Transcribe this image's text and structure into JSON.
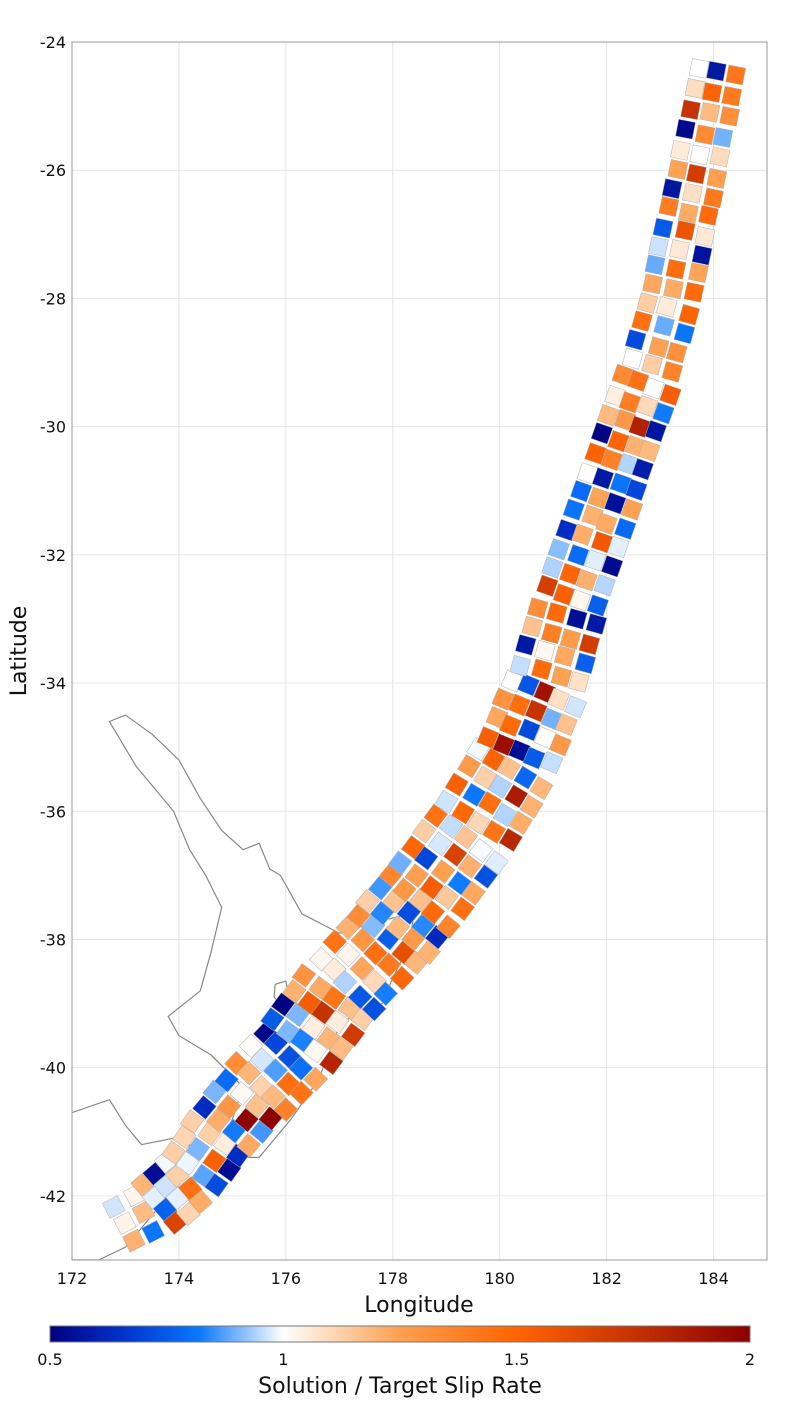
{
  "chart_data": {
    "type": "heatmap",
    "title": "",
    "xlabel": "Longitude",
    "ylabel": "Latitude",
    "xlim": [
      172,
      185
    ],
    "ylim": [
      -43,
      -24
    ],
    "x_ticks": [
      "172",
      "174",
      "176",
      "178",
      "180",
      "182",
      "184"
    ],
    "y_ticks": [
      "-24",
      "-26",
      "-28",
      "-30",
      "-32",
      "-34",
      "-36",
      "-38",
      "-40",
      "-42"
    ],
    "grid": true,
    "colorbar": {
      "label": "Solution / Target Slip Rate",
      "range": [
        0.5,
        2
      ],
      "ticks": [
        "0.5",
        "1",
        "1.5",
        "2"
      ],
      "tick_values": [
        0.5,
        1,
        1.5,
        2
      ],
      "stops": [
        {
          "value": 0.5,
          "color": "#000080"
        },
        {
          "value": 0.65,
          "color": "#0030c8"
        },
        {
          "value": 0.82,
          "color": "#0a78ff"
        },
        {
          "value": 1.0,
          "color": "#ffffff"
        },
        {
          "value": 1.25,
          "color": "#ffa050"
        },
        {
          "value": 1.5,
          "color": "#ff6400"
        },
        {
          "value": 2.0,
          "color": "#8c0000"
        }
      ]
    },
    "fault_trace": [
      [
        172.8,
        -42.5
      ],
      [
        173.5,
        -42.2
      ],
      [
        174.2,
        -41.7
      ],
      [
        174.8,
        -41.0
      ],
      [
        175.4,
        -40.4
      ],
      [
        176.2,
        -39.7
      ],
      [
        177.0,
        -38.8
      ],
      [
        177.8,
        -38.1
      ],
      [
        178.6,
        -37.3
      ],
      [
        179.5,
        -36.3
      ],
      [
        180.3,
        -35.2
      ],
      [
        180.9,
        -34.0
      ],
      [
        181.3,
        -32.8
      ],
      [
        181.8,
        -31.6
      ],
      [
        182.3,
        -30.4
      ],
      [
        182.8,
        -29.2
      ],
      [
        183.2,
        -28.0
      ],
      [
        183.5,
        -26.8
      ],
      [
        183.8,
        -25.6
      ],
      [
        184.1,
        -24.3
      ]
    ],
    "fault_width_deg": [
      1.1,
      1.3,
      1.4,
      1.5,
      1.6,
      1.7,
      1.7,
      1.8,
      1.8,
      1.7,
      1.6,
      1.5,
      1.4,
      1.3,
      1.3,
      1.2,
      1.2,
      1.1,
      1.1,
      1.0
    ],
    "coastline_north_island": [
      [
        173.0,
        -34.5
      ],
      [
        173.5,
        -34.8
      ],
      [
        174.0,
        -35.2
      ],
      [
        174.4,
        -35.8
      ],
      [
        174.8,
        -36.3
      ],
      [
        175.2,
        -36.6
      ],
      [
        175.5,
        -36.5
      ],
      [
        175.7,
        -36.9
      ],
      [
        175.9,
        -37.0
      ],
      [
        176.3,
        -37.6
      ],
      [
        177.0,
        -37.9
      ],
      [
        177.8,
        -37.7
      ],
      [
        178.4,
        -37.6
      ],
      [
        178.3,
        -38.1
      ],
      [
        178.0,
        -38.6
      ],
      [
        177.8,
        -39.0
      ],
      [
        177.0,
        -39.3
      ],
      [
        176.9,
        -39.6
      ],
      [
        176.6,
        -40.2
      ],
      [
        176.1,
        -40.8
      ],
      [
        175.5,
        -41.4
      ],
      [
        175.0,
        -41.4
      ],
      [
        174.8,
        -41.3
      ],
      [
        175.0,
        -40.8
      ],
      [
        175.2,
        -40.3
      ],
      [
        174.6,
        -39.8
      ],
      [
        174.0,
        -39.5
      ],
      [
        173.8,
        -39.2
      ],
      [
        174.4,
        -38.8
      ],
      [
        174.6,
        -38.2
      ],
      [
        174.8,
        -37.5
      ],
      [
        174.5,
        -37.0
      ],
      [
        174.2,
        -36.6
      ],
      [
        173.9,
        -36.0
      ],
      [
        173.2,
        -35.3
      ],
      [
        172.7,
        -34.6
      ],
      [
        173.0,
        -34.5
      ]
    ],
    "coastline_south_island": [
      [
        172.0,
        -40.7
      ],
      [
        172.7,
        -40.5
      ],
      [
        173.0,
        -40.9
      ],
      [
        173.3,
        -41.2
      ],
      [
        173.9,
        -41.1
      ],
      [
        174.2,
        -41.2
      ],
      [
        174.1,
        -41.6
      ],
      [
        173.8,
        -42.0
      ],
      [
        173.4,
        -42.4
      ],
      [
        173.0,
        -42.8
      ],
      [
        172.5,
        -43.0
      ],
      [
        172.0,
        -43.0
      ]
    ],
    "lake_taupo": [
      [
        175.8,
        -38.7
      ],
      [
        176.0,
        -38.65
      ],
      [
        176.05,
        -38.85
      ],
      [
        175.9,
        -39.0
      ],
      [
        175.78,
        -38.9
      ],
      [
        175.8,
        -38.7
      ]
    ]
  }
}
